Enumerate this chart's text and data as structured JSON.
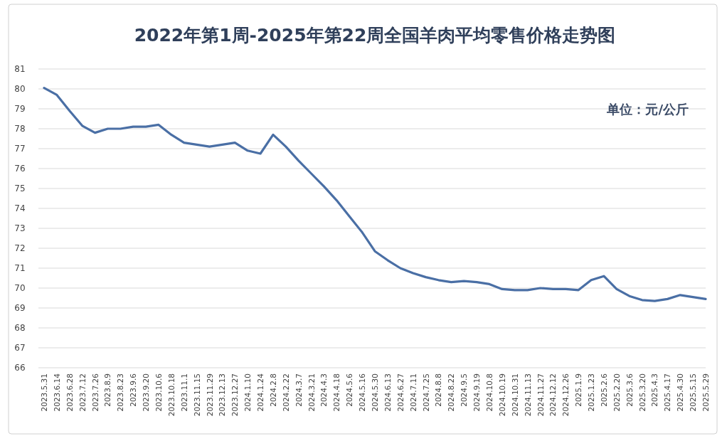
{
  "chart_data": {
    "type": "line",
    "title": "2022年第1周-2025年第22周全国羊肉平均零售价格走势图",
    "annotations": [
      "单位：元/公斤"
    ],
    "categories": [
      "2023.5.31",
      "2023.6.14",
      "2023.6.28",
      "2023.7.12",
      "2023.7.26",
      "2023.8.9",
      "2023.8.23",
      "2023.9.6",
      "2023.9.20",
      "2023.10.6",
      "2023.10.18",
      "2023.11.1",
      "2023.11.15",
      "2023.11.29",
      "2023.12.13",
      "2023.12.27",
      "2024.1.10",
      "2024.1.24",
      "2024.2.8",
      "2024.2.22",
      "2024.3.7",
      "2024.3.21",
      "2024.4.3",
      "2024.4.18",
      "2024.5.6",
      "2024.5.16",
      "2024.5.30",
      "2024.6.13",
      "2024.6.27",
      "2024.7.11",
      "2024.7.25",
      "2024.8.8",
      "2024.8.22",
      "2024.9.5",
      "2024.9.19",
      "2024.10.8",
      "2024.10.19",
      "2024.10.31",
      "2024.11.13",
      "2024.11.27",
      "2024.12.12",
      "2024.12.26",
      "2025.1.9",
      "2025.1.23",
      "2025.2.6",
      "2025.2.20",
      "2025.3.6",
      "2025.3.20",
      "2025.4.3",
      "2025.4.17",
      "2025.4.30",
      "2025.5.15",
      "2025.5.29"
    ],
    "series": [
      {
        "color": "#4a6fa5",
        "values": [
          80.05,
          79.7,
          78.9,
          78.15,
          77.8,
          78.0,
          78.0,
          78.1,
          78.1,
          78.2,
          77.7,
          77.3,
          77.2,
          77.1,
          77.2,
          77.3,
          76.9,
          76.75,
          77.7,
          77.1,
          76.4,
          75.75,
          75.1,
          74.4,
          73.6,
          72.8,
          71.85,
          71.4,
          71.0,
          70.75,
          70.55,
          70.4,
          70.3,
          70.35,
          70.3,
          70.2,
          69.95,
          69.9,
          69.9,
          70.0,
          69.95,
          69.95,
          69.9,
          70.4,
          70.6,
          69.95,
          69.6,
          69.4,
          69.35,
          69.45,
          69.65,
          69.55,
          69.45
        ]
      }
    ],
    "ylim": [
      66,
      81
    ],
    "yticks": [
      66,
      67,
      68,
      69,
      70,
      71,
      72,
      73,
      74,
      75,
      76,
      77,
      78,
      79,
      80,
      81
    ],
    "grid": "y",
    "marker": "none",
    "line_style": "solid"
  }
}
